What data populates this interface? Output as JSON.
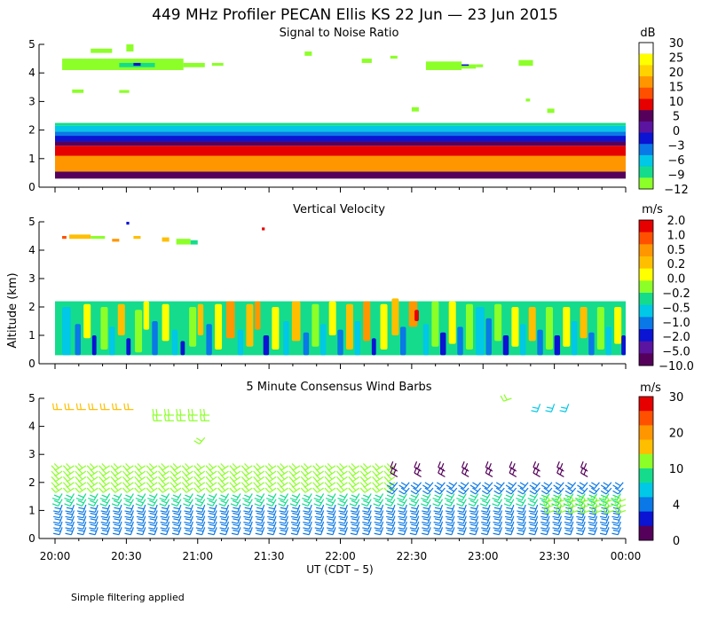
{
  "title": "449 MHz Profiler PECAN Ellis KS 22 Jun — 23 Jun 2015",
  "footnote": "Simple filtering applied",
  "xaxis": {
    "label": "UT  (CDT – 5)",
    "ticks": [
      "20:00",
      "20:30",
      "21:00",
      "21:30",
      "22:00",
      "22:30",
      "23:00",
      "23:30",
      "00:00"
    ],
    "range_hours": [
      20,
      24
    ]
  },
  "ylabel": "Altitude (km)",
  "yticks": [
    "0",
    "1",
    "2",
    "3",
    "4",
    "5"
  ],
  "chart_data": [
    {
      "type": "heatmap",
      "title": "Signal to Noise Ratio",
      "units": "dB",
      "xlim": [
        20,
        24
      ],
      "ylim": [
        0,
        5
      ],
      "colorbar": {
        "labels": [
          "30",
          "25",
          "20",
          "15",
          "10",
          "5",
          "0",
          "−3",
          "−6",
          "−9",
          "−12"
        ],
        "colors": [
          "#ffffff",
          "#ffff00",
          "#ffd200",
          "#ff9600",
          "#ff5000",
          "#e60000",
          "#55005a",
          "#5a14a0",
          "#0a14d2",
          "#0a78e6",
          "#00c8e6",
          "#14dc8c",
          "#8cff28"
        ]
      },
      "layers": [
        {
          "ymin": 0.3,
          "ymax": 0.55,
          "color": "#55005a"
        },
        {
          "ymin": 0.55,
          "ymax": 1.3,
          "color": "#ff9600"
        },
        {
          "ymin": 1.1,
          "ymax": 1.45,
          "color": "#e60000"
        },
        {
          "ymin": 1.45,
          "ymax": 1.6,
          "color": "#55005a"
        },
        {
          "ymin": 1.6,
          "ymax": 1.8,
          "color": "#0a14d2"
        },
        {
          "ymin": 1.8,
          "ymax": 1.95,
          "color": "#0a78e6"
        },
        {
          "ymin": 1.95,
          "ymax": 2.15,
          "color": "#00c8e6"
        },
        {
          "ymin": 2.15,
          "ymax": 2.25,
          "color": "#14dc8c"
        }
      ],
      "patches": [
        {
          "x0": 20.05,
          "x1": 20.9,
          "y0": 4.1,
          "y1": 4.5,
          "color": "#8cff28"
        },
        {
          "x0": 20.25,
          "x1": 20.4,
          "y0": 4.7,
          "y1": 4.85,
          "color": "#8cff28"
        },
        {
          "x0": 20.45,
          "x1": 20.7,
          "y0": 4.2,
          "y1": 4.35,
          "color": "#14dc8c"
        },
        {
          "x0": 20.55,
          "x1": 20.6,
          "y0": 4.25,
          "y1": 4.35,
          "color": "#0a14d2"
        },
        {
          "x0": 20.5,
          "x1": 20.55,
          "y0": 4.75,
          "y1": 5.0,
          "color": "#8cff28"
        },
        {
          "x0": 20.9,
          "x1": 21.05,
          "y0": 4.2,
          "y1": 4.35,
          "color": "#8cff28"
        },
        {
          "x0": 21.1,
          "x1": 21.18,
          "y0": 4.25,
          "y1": 4.35,
          "color": "#8cff28"
        },
        {
          "x0": 20.45,
          "x1": 20.52,
          "y0": 3.3,
          "y1": 3.4,
          "color": "#8cff28"
        },
        {
          "x0": 20.12,
          "x1": 20.2,
          "y0": 3.3,
          "y1": 3.42,
          "color": "#8cff28"
        },
        {
          "x0": 21.75,
          "x1": 21.8,
          "y0": 4.6,
          "y1": 4.75,
          "color": "#8cff28"
        },
        {
          "x0": 22.15,
          "x1": 22.22,
          "y0": 4.35,
          "y1": 4.5,
          "color": "#8cff28"
        },
        {
          "x0": 22.35,
          "x1": 22.4,
          "y0": 4.5,
          "y1": 4.6,
          "color": "#8cff28"
        },
        {
          "x0": 22.6,
          "x1": 22.85,
          "y0": 4.1,
          "y1": 4.4,
          "color": "#8cff28"
        },
        {
          "x0": 22.8,
          "x1": 22.95,
          "y0": 4.15,
          "y1": 4.3,
          "color": "#8cff28"
        },
        {
          "x0": 22.95,
          "x1": 23.0,
          "y0": 4.2,
          "y1": 4.3,
          "color": "#8cff28"
        },
        {
          "x0": 22.85,
          "x1": 22.9,
          "y0": 4.25,
          "y1": 4.3,
          "color": "#0a14d2"
        },
        {
          "x0": 23.25,
          "x1": 23.35,
          "y0": 4.25,
          "y1": 4.45,
          "color": "#8cff28"
        },
        {
          "x0": 22.5,
          "x1": 22.55,
          "y0": 2.65,
          "y1": 2.8,
          "color": "#8cff28"
        },
        {
          "x0": 23.45,
          "x1": 23.5,
          "y0": 2.6,
          "y1": 2.75,
          "color": "#8cff28"
        },
        {
          "x0": 23.3,
          "x1": 23.33,
          "y0": 3.0,
          "y1": 3.1,
          "color": "#8cff28"
        }
      ]
    },
    {
      "type": "heatmap",
      "title": "Vertical Velocity",
      "units": "m/s",
      "xlim": [
        20,
        24
      ],
      "ylim": [
        0,
        5
      ],
      "colorbar": {
        "labels": [
          "2.0",
          "1.0",
          "0.5",
          "0.2",
          "0.0",
          "−0.2",
          "−0.5",
          "−1.0",
          "−2.0",
          "−5.0",
          "−10.0"
        ],
        "colors": [
          "#e60000",
          "#ff5000",
          "#ff9600",
          "#ffbe00",
          "#ffff00",
          "#8cff28",
          "#14dc8c",
          "#00c8e6",
          "#0a78e6",
          "#0a14d2",
          "#5a14a0",
          "#55005a"
        ]
      },
      "layers": [
        {
          "ymin": 0.3,
          "ymax": 2.2,
          "color": "#14dc8c"
        }
      ],
      "patches": [
        {
          "x0": 20.1,
          "x1": 20.25,
          "y0": 4.4,
          "y1": 4.55,
          "color": "#ffbe00"
        },
        {
          "x0": 20.25,
          "x1": 20.35,
          "y0": 4.4,
          "y1": 4.5,
          "color": "#8cff28"
        },
        {
          "x0": 20.05,
          "x1": 20.08,
          "y0": 4.4,
          "y1": 4.5,
          "color": "#ff5000"
        },
        {
          "x0": 20.4,
          "x1": 20.45,
          "y0": 4.3,
          "y1": 4.4,
          "color": "#ff9600"
        },
        {
          "x0": 20.55,
          "x1": 20.6,
          "y0": 4.4,
          "y1": 4.5,
          "color": "#ffbe00"
        },
        {
          "x0": 20.75,
          "x1": 20.8,
          "y0": 4.3,
          "y1": 4.45,
          "color": "#ffbe00"
        },
        {
          "x0": 20.85,
          "x1": 20.95,
          "y0": 4.2,
          "y1": 4.4,
          "color": "#8cff28"
        },
        {
          "x0": 20.95,
          "x1": 21.0,
          "y0": 4.2,
          "y1": 4.35,
          "color": "#14dc8c"
        },
        {
          "x0": 20.5,
          "x1": 20.52,
          "y0": 4.9,
          "y1": 5.0,
          "color": "#0a14d2"
        },
        {
          "x0": 21.45,
          "x1": 21.47,
          "y0": 4.7,
          "y1": 4.8,
          "color": "#e60000"
        }
      ],
      "streaks": [
        {
          "x": 20.05,
          "w": 0.06,
          "y0": 0.3,
          "y1": 2.0,
          "color": "#00c8e6"
        },
        {
          "x": 20.14,
          "w": 0.04,
          "y0": 0.3,
          "y1": 1.4,
          "color": "#0a78e6"
        },
        {
          "x": 20.2,
          "w": 0.05,
          "y0": 0.9,
          "y1": 2.1,
          "color": "#ffff00"
        },
        {
          "x": 20.26,
          "w": 0.03,
          "y0": 0.3,
          "y1": 1.0,
          "color": "#0a14d2"
        },
        {
          "x": 20.32,
          "w": 0.05,
          "y0": 0.5,
          "y1": 2.0,
          "color": "#8cff28"
        },
        {
          "x": 20.38,
          "w": 0.04,
          "y0": 0.3,
          "y1": 1.3,
          "color": "#00c8e6"
        },
        {
          "x": 20.44,
          "w": 0.05,
          "y0": 1.0,
          "y1": 2.1,
          "color": "#ffbe00"
        },
        {
          "x": 20.5,
          "w": 0.03,
          "y0": 0.3,
          "y1": 0.9,
          "color": "#0a14d2"
        },
        {
          "x": 20.56,
          "w": 0.05,
          "y0": 0.4,
          "y1": 1.9,
          "color": "#8cff28"
        },
        {
          "x": 20.62,
          "w": 0.04,
          "y0": 1.2,
          "y1": 2.2,
          "color": "#ffff00"
        },
        {
          "x": 20.68,
          "w": 0.04,
          "y0": 0.3,
          "y1": 1.5,
          "color": "#0a78e6"
        },
        {
          "x": 20.75,
          "w": 0.05,
          "y0": 0.8,
          "y1": 2.1,
          "color": "#ffff00"
        },
        {
          "x": 20.82,
          "w": 0.04,
          "y0": 0.3,
          "y1": 1.2,
          "color": "#00c8e6"
        },
        {
          "x": 20.88,
          "w": 0.03,
          "y0": 0.3,
          "y1": 0.8,
          "color": "#0a14d2"
        },
        {
          "x": 20.94,
          "w": 0.05,
          "y0": 0.6,
          "y1": 2.0,
          "color": "#8cff28"
        },
        {
          "x": 21.0,
          "w": 0.04,
          "y0": 1.0,
          "y1": 2.1,
          "color": "#ffbe00"
        },
        {
          "x": 21.06,
          "w": 0.04,
          "y0": 0.3,
          "y1": 1.4,
          "color": "#0a78e6"
        },
        {
          "x": 21.12,
          "w": 0.05,
          "y0": 0.5,
          "y1": 2.1,
          "color": "#ffff00"
        },
        {
          "x": 21.2,
          "w": 0.06,
          "y0": 0.9,
          "y1": 2.2,
          "color": "#ff9600"
        },
        {
          "x": 21.28,
          "w": 0.04,
          "y0": 0.3,
          "y1": 1.2,
          "color": "#00c8e6"
        },
        {
          "x": 21.34,
          "w": 0.05,
          "y0": 0.6,
          "y1": 2.1,
          "color": "#ffbe00"
        },
        {
          "x": 21.4,
          "w": 0.04,
          "y0": 1.2,
          "y1": 2.2,
          "color": "#ff9600"
        },
        {
          "x": 21.46,
          "w": 0.04,
          "y0": 0.3,
          "y1": 1.0,
          "color": "#0a14d2"
        },
        {
          "x": 21.52,
          "w": 0.05,
          "y0": 0.5,
          "y1": 2.0,
          "color": "#ffff00"
        },
        {
          "x": 21.6,
          "w": 0.04,
          "y0": 0.3,
          "y1": 1.5,
          "color": "#00c8e6"
        },
        {
          "x": 21.66,
          "w": 0.06,
          "y0": 0.8,
          "y1": 2.2,
          "color": "#ffbe00"
        },
        {
          "x": 21.74,
          "w": 0.04,
          "y0": 0.3,
          "y1": 1.1,
          "color": "#0a78e6"
        },
        {
          "x": 21.8,
          "w": 0.05,
          "y0": 0.6,
          "y1": 2.1,
          "color": "#8cff28"
        },
        {
          "x": 21.86,
          "w": 0.04,
          "y0": 0.3,
          "y1": 1.4,
          "color": "#00c8e6"
        },
        {
          "x": 21.92,
          "w": 0.05,
          "y0": 1.0,
          "y1": 2.2,
          "color": "#ffff00"
        },
        {
          "x": 21.98,
          "w": 0.04,
          "y0": 0.3,
          "y1": 1.2,
          "color": "#0a78e6"
        },
        {
          "x": 22.04,
          "w": 0.05,
          "y0": 0.5,
          "y1": 2.1,
          "color": "#ffbe00"
        },
        {
          "x": 22.1,
          "w": 0.04,
          "y0": 0.3,
          "y1": 1.5,
          "color": "#00c8e6"
        },
        {
          "x": 22.16,
          "w": 0.05,
          "y0": 0.8,
          "y1": 2.2,
          "color": "#ff9600"
        },
        {
          "x": 22.22,
          "w": 0.03,
          "y0": 0.3,
          "y1": 0.9,
          "color": "#0a14d2"
        },
        {
          "x": 22.28,
          "w": 0.05,
          "y0": 0.5,
          "y1": 2.1,
          "color": "#ffff00"
        },
        {
          "x": 22.36,
          "w": 0.05,
          "y0": 1.0,
          "y1": 2.3,
          "color": "#ffbe00"
        },
        {
          "x": 22.42,
          "w": 0.04,
          "y0": 0.3,
          "y1": 1.3,
          "color": "#0a78e6"
        },
        {
          "x": 22.48,
          "w": 0.06,
          "y0": 1.3,
          "y1": 2.2,
          "color": "#ff9600"
        },
        {
          "x": 22.52,
          "w": 0.03,
          "y0": 1.5,
          "y1": 1.9,
          "color": "#e60000"
        },
        {
          "x": 22.58,
          "w": 0.04,
          "y0": 0.3,
          "y1": 1.4,
          "color": "#00c8e6"
        },
        {
          "x": 22.64,
          "w": 0.05,
          "y0": 0.6,
          "y1": 2.2,
          "color": "#8cff28"
        },
        {
          "x": 22.7,
          "w": 0.04,
          "y0": 0.3,
          "y1": 1.1,
          "color": "#0a14d2"
        },
        {
          "x": 22.76,
          "w": 0.05,
          "y0": 0.7,
          "y1": 2.2,
          "color": "#ffff00"
        },
        {
          "x": 22.82,
          "w": 0.04,
          "y0": 0.3,
          "y1": 1.3,
          "color": "#0a78e6"
        },
        {
          "x": 22.88,
          "w": 0.05,
          "y0": 0.5,
          "y1": 2.1,
          "color": "#8cff28"
        },
        {
          "x": 22.95,
          "w": 0.06,
          "y0": 0.3,
          "y1": 2.0,
          "color": "#00c8e6"
        },
        {
          "x": 23.02,
          "w": 0.04,
          "y0": 0.3,
          "y1": 1.6,
          "color": "#0a78e6"
        },
        {
          "x": 23.08,
          "w": 0.05,
          "y0": 0.8,
          "y1": 2.1,
          "color": "#8cff28"
        },
        {
          "x": 23.14,
          "w": 0.04,
          "y0": 0.3,
          "y1": 1.0,
          "color": "#0a14d2"
        },
        {
          "x": 23.2,
          "w": 0.05,
          "y0": 0.6,
          "y1": 2.0,
          "color": "#ffff00"
        },
        {
          "x": 23.26,
          "w": 0.04,
          "y0": 0.3,
          "y1": 1.4,
          "color": "#00c8e6"
        },
        {
          "x": 23.32,
          "w": 0.05,
          "y0": 0.8,
          "y1": 2.0,
          "color": "#ffbe00"
        },
        {
          "x": 23.38,
          "w": 0.04,
          "y0": 0.3,
          "y1": 1.2,
          "color": "#0a78e6"
        },
        {
          "x": 23.44,
          "w": 0.05,
          "y0": 0.5,
          "y1": 2.0,
          "color": "#8cff28"
        },
        {
          "x": 23.5,
          "w": 0.04,
          "y0": 0.3,
          "y1": 1.0,
          "color": "#0a14d2"
        },
        {
          "x": 23.56,
          "w": 0.05,
          "y0": 0.6,
          "y1": 2.0,
          "color": "#ffff00"
        },
        {
          "x": 23.62,
          "w": 0.04,
          "y0": 0.3,
          "y1": 1.5,
          "color": "#00c8e6"
        },
        {
          "x": 23.68,
          "w": 0.05,
          "y0": 0.9,
          "y1": 2.0,
          "color": "#ffbe00"
        },
        {
          "x": 23.74,
          "w": 0.04,
          "y0": 0.3,
          "y1": 1.1,
          "color": "#0a78e6"
        },
        {
          "x": 23.8,
          "w": 0.05,
          "y0": 0.5,
          "y1": 2.0,
          "color": "#8cff28"
        },
        {
          "x": 23.86,
          "w": 0.04,
          "y0": 0.3,
          "y1": 1.3,
          "color": "#00c8e6"
        },
        {
          "x": 23.92,
          "w": 0.05,
          "y0": 0.7,
          "y1": 2.0,
          "color": "#ffff00"
        },
        {
          "x": 23.97,
          "w": 0.03,
          "y0": 0.3,
          "y1": 1.0,
          "color": "#0a14d2"
        }
      ]
    },
    {
      "type": "scatter",
      "title": "5 Minute Consensus Wind Barbs",
      "units": "m/s",
      "xlim": [
        20,
        24
      ],
      "ylim": [
        0,
        5
      ],
      "colorbar": {
        "labels": [
          "30",
          "20",
          "10",
          "4",
          "0"
        ],
        "colors": [
          "#e60000",
          "#ff5000",
          "#ff9600",
          "#ffbe00",
          "#8cff28",
          "#14dc8c",
          "#00c8e6",
          "#0a78e6",
          "#0a14d2",
          "#55005a"
        ]
      },
      "barb_groups": [
        {
          "t0": 20.05,
          "t1": 24.0,
          "step": 0.0833,
          "heights": [
            0.4,
            0.6,
            0.8,
            1.0,
            1.2
          ],
          "color": "#0a78e6",
          "dir": 200,
          "len": 0.28
        },
        {
          "t0": 20.05,
          "t1": 24.0,
          "step": 0.0833,
          "heights": [
            1.4,
            1.6
          ],
          "color": "#14dc8c",
          "dir": 210,
          "len": 0.28
        },
        {
          "t0": 20.05,
          "t1": 22.4,
          "step": 0.0833,
          "heights": [
            1.8,
            2.0,
            2.2,
            2.4,
            2.6
          ],
          "color": "#8cff28",
          "dir": 235,
          "len": 0.28
        },
        {
          "t0": 22.4,
          "t1": 24.0,
          "step": 0.0833,
          "heights": [
            1.8,
            2.0
          ],
          "color": "#0a78e6",
          "dir": 220,
          "len": 0.28
        },
        {
          "t0": 22.4,
          "t1": 23.8,
          "step": 0.1667,
          "heights": [
            2.2,
            2.4
          ],
          "color": "#55005a",
          "dir": 300,
          "len": 0.28
        },
        {
          "t0": 23.5,
          "t1": 24.0,
          "step": 0.0833,
          "heights": [
            1.0,
            1.2,
            1.4
          ],
          "color": "#8cff28",
          "dir": 250,
          "len": 0.3
        },
        {
          "t0": 20.05,
          "t1": 20.55,
          "step": 0.0833,
          "heights": [
            4.6
          ],
          "color": "#ffbe00",
          "dir": 270,
          "len": 0.3
        },
        {
          "t0": 20.75,
          "t1": 21.1,
          "step": 0.0833,
          "heights": [
            4.2,
            4.4
          ],
          "color": "#8cff28",
          "dir": 270,
          "len": 0.3
        },
        {
          "t0": 21.05,
          "t1": 21.06,
          "step": 0.0833,
          "heights": [
            3.6
          ],
          "color": "#8cff28",
          "dir": 220,
          "len": 0.3
        },
        {
          "t0": 23.2,
          "t1": 23.21,
          "step": 0.0833,
          "heights": [
            5.0
          ],
          "color": "#8cff28",
          "dir": 250,
          "len": 0.3
        },
        {
          "t0": 23.4,
          "t1": 23.65,
          "step": 0.1,
          "heights": [
            4.8
          ],
          "color": "#00c8e6",
          "dir": 200,
          "len": 0.3
        }
      ]
    }
  ]
}
